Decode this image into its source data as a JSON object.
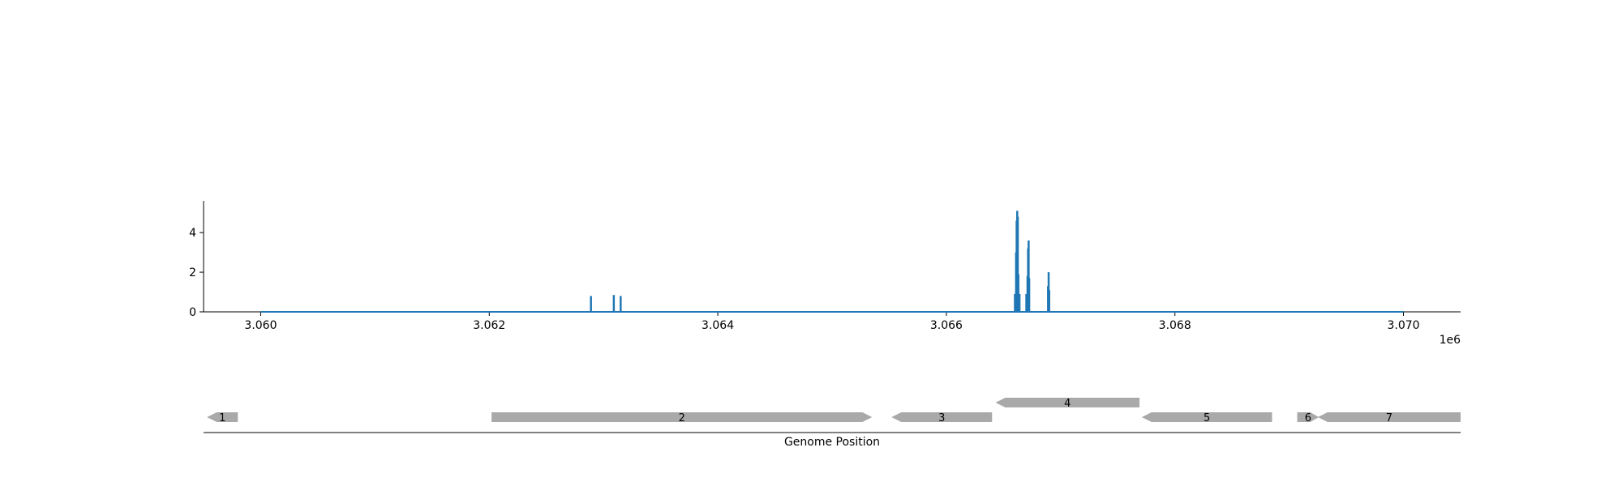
{
  "chart_data": [
    {
      "type": "line",
      "title": "",
      "xlabel": "",
      "ylabel": "",
      "x_offset_label": "1e6",
      "xlim": [
        3059500,
        3070500
      ],
      "ylim": [
        0,
        5.6
      ],
      "xticks": [
        3060000,
        3062000,
        3064000,
        3066000,
        3068000,
        3070000
      ],
      "xtick_labels": [
        "3.060",
        "3.062",
        "3.064",
        "3.066",
        "3.068",
        "3.070"
      ],
      "yticks": [
        0,
        2,
        4
      ],
      "ytick_labels": [
        "0",
        "2",
        "4"
      ],
      "grid": false,
      "color": "#1f77b4",
      "baseline": {
        "x_start": 3060000,
        "x_end": 3070000,
        "y": 0
      },
      "peaks": [
        {
          "x": 3062890,
          "y": 0.8
        },
        {
          "x": 3063090,
          "y": 0.85
        },
        {
          "x": 3063150,
          "y": 0.8
        },
        {
          "x": 3066600,
          "y": 0.9
        },
        {
          "x": 3066610,
          "y": 3.0
        },
        {
          "x": 3066615,
          "y": 4.6
        },
        {
          "x": 3066620,
          "y": 5.1
        },
        {
          "x": 3066625,
          "y": 4.8
        },
        {
          "x": 3066630,
          "y": 1.9
        },
        {
          "x": 3066640,
          "y": 0.9
        },
        {
          "x": 3066700,
          "y": 0.9
        },
        {
          "x": 3066710,
          "y": 1.8
        },
        {
          "x": 3066715,
          "y": 3.2
        },
        {
          "x": 3066720,
          "y": 3.6
        },
        {
          "x": 3066725,
          "y": 1.7
        },
        {
          "x": 3066890,
          "y": 1.3
        },
        {
          "x": 3066895,
          "y": 2.0
        },
        {
          "x": 3066900,
          "y": 1.1
        }
      ]
    },
    {
      "type": "gene-track",
      "xlabel": "Genome Position",
      "xlim": [
        3059500,
        3070500
      ],
      "genes": [
        {
          "label": "1",
          "start": 3059530,
          "end": 3059800,
          "strand": "-",
          "row": 0
        },
        {
          "label": "2",
          "start": 3062020,
          "end": 3065350,
          "strand": "+",
          "row": 0
        },
        {
          "label": "3",
          "start": 3065520,
          "end": 3066400,
          "strand": "-",
          "row": 0
        },
        {
          "label": "4",
          "start": 3066430,
          "end": 3067690,
          "strand": "-",
          "row": 1
        },
        {
          "label": "5",
          "start": 3067710,
          "end": 3068850,
          "strand": "-",
          "row": 0
        },
        {
          "label": "6",
          "start": 3069070,
          "end": 3069260,
          "strand": "+",
          "row": 0
        },
        {
          "label": "7",
          "start": 3069250,
          "end": 3070500,
          "strand": "-",
          "row": 0
        }
      ],
      "gene_color": "#a9a9a9"
    }
  ]
}
